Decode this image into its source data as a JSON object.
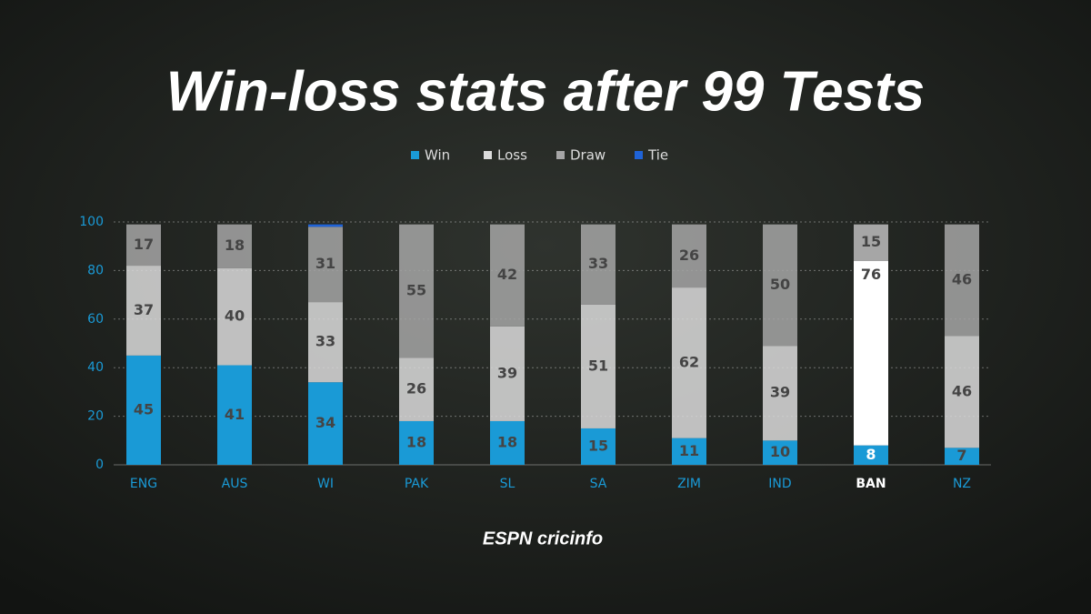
{
  "chart_data": {
    "type": "stacked_bar",
    "title": "Win-loss stats after 99 Tests",
    "brand": "ESPN cricinfo",
    "categories": [
      "ENG",
      "AUS",
      "WI",
      "PAK",
      "SL",
      "SA",
      "ZIM",
      "IND",
      "BAN",
      "NZ"
    ],
    "series": [
      {
        "name": "Win",
        "color": "#1a9ad6",
        "values": [
          45,
          41,
          34,
          18,
          18,
          15,
          11,
          10,
          8,
          7
        ]
      },
      {
        "name": "Loss",
        "color": "#dcdcdc",
        "values": [
          37,
          40,
          33,
          26,
          39,
          51,
          62,
          39,
          76,
          46
        ]
      },
      {
        "name": "Draw",
        "color": "#a6a6a6",
        "values": [
          17,
          18,
          31,
          55,
          42,
          33,
          26,
          50,
          15,
          46
        ]
      },
      {
        "name": "Tie",
        "color": "#1f63d8",
        "values": [
          0,
          0,
          1,
          0,
          0,
          0,
          0,
          0,
          0,
          0
        ]
      }
    ],
    "ylim": [
      0,
      100
    ],
    "yticks": [
      0,
      20,
      40,
      60,
      80,
      100
    ],
    "grid": true,
    "highlight_index": 8
  }
}
